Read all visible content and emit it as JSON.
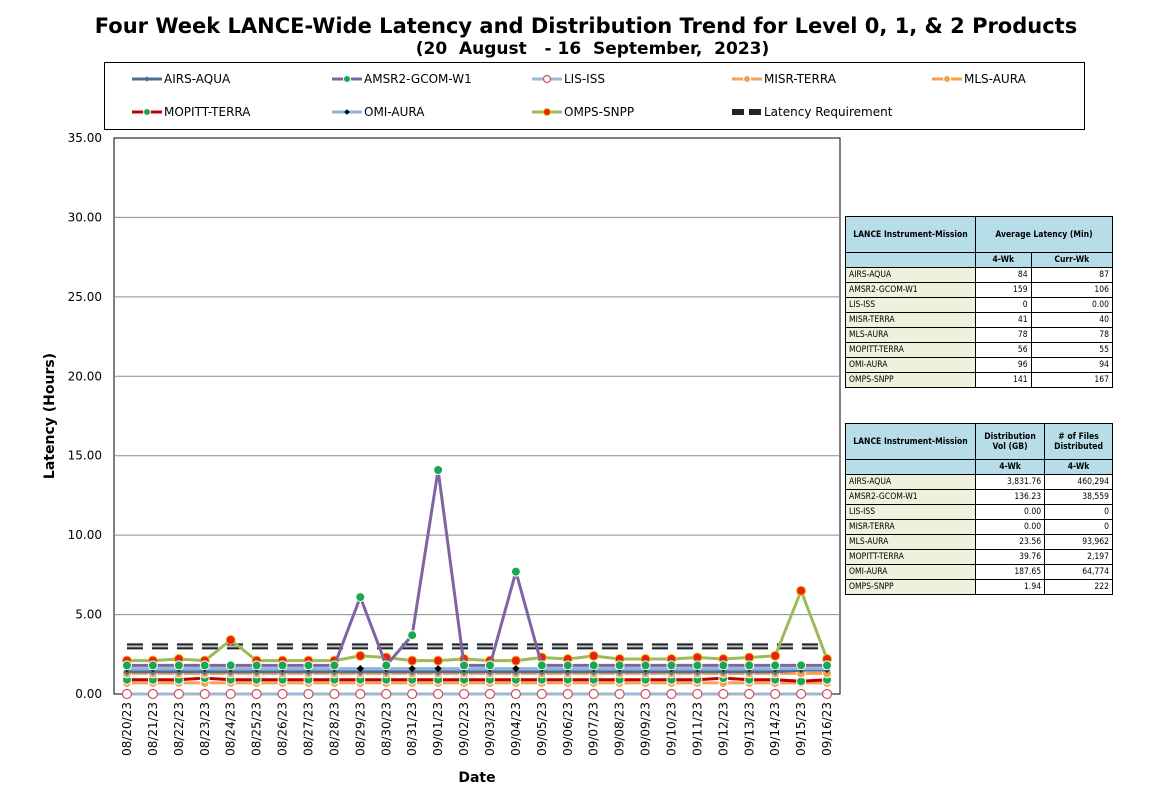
{
  "chart_data": {
    "type": "line",
    "title": "Four Week LANCE-Wide Latency and Distribution Trend for Level 0, 1, & 2 Products",
    "subtitle": "(20  August   - 16  September,  2023)",
    "xlabel": "Date",
    "ylabel": "Latency (Hours)",
    "ylim": [
      0,
      35
    ],
    "yticks": [
      "0.00",
      "5.00",
      "10.00",
      "15.00",
      "20.00",
      "25.00",
      "30.00",
      "35.00"
    ],
    "grid": true,
    "legend_position": "top",
    "x": [
      "08/20/23",
      "08/21/23",
      "08/22/23",
      "08/23/23",
      "08/24/23",
      "08/25/23",
      "08/26/23",
      "08/27/23",
      "08/28/23",
      "08/29/23",
      "08/30/23",
      "08/31/23",
      "09/01/23",
      "09/02/23",
      "09/03/23",
      "09/04/23",
      "09/05/23",
      "09/06/23",
      "09/07/23",
      "09/08/23",
      "09/09/23",
      "09/10/23",
      "09/11/23",
      "09/12/23",
      "09/13/23",
      "09/14/23",
      "09/15/23",
      "09/16/23"
    ],
    "series": [
      {
        "name": "AIRS-AQUA",
        "color": "#4a6f94",
        "marker": "diamond",
        "values": [
          1.4,
          1.4,
          1.4,
          1.4,
          1.4,
          1.4,
          1.4,
          1.4,
          1.4,
          1.4,
          1.4,
          1.4,
          1.4,
          1.4,
          1.4,
          1.4,
          1.4,
          1.4,
          1.4,
          1.4,
          1.4,
          1.4,
          1.4,
          1.4,
          1.4,
          1.4,
          1.5,
          1.5
        ]
      },
      {
        "name": "AMSR2-GCOM-W1",
        "color": "#8064a2",
        "marker": "circle",
        "values": [
          1.8,
          1.8,
          1.8,
          1.8,
          1.8,
          1.8,
          1.8,
          1.8,
          1.8,
          6.1,
          1.8,
          3.7,
          14.1,
          1.8,
          1.8,
          7.7,
          1.8,
          1.8,
          1.8,
          1.8,
          1.8,
          1.8,
          1.8,
          1.8,
          1.8,
          1.8,
          1.8,
          1.8
        ]
      },
      {
        "name": "LIS-ISS",
        "color": "#9ab9d6",
        "marker": "open-circle",
        "values": [
          0,
          0,
          0,
          0,
          0,
          0,
          0,
          0,
          0,
          0,
          0,
          0,
          0,
          0,
          0,
          0,
          0,
          0,
          0,
          0,
          0,
          0,
          0,
          0,
          0,
          0,
          0,
          0
        ]
      },
      {
        "name": "MISR-TERRA",
        "color": "#f0a35a",
        "marker": "circle",
        "values": [
          0.7,
          0.7,
          0.7,
          0.7,
          0.7,
          0.7,
          0.7,
          0.7,
          0.7,
          0.7,
          0.7,
          0.7,
          0.7,
          0.7,
          0.7,
          0.7,
          0.7,
          0.7,
          0.7,
          0.7,
          0.7,
          0.7,
          0.7,
          0.7,
          0.7,
          0.7,
          0.7,
          0.7
        ]
      },
      {
        "name": "MLS-AURA",
        "color": "#f5a04a",
        "marker": "circle",
        "values": [
          1.3,
          1.3,
          1.3,
          1.3,
          1.3,
          1.3,
          1.3,
          1.3,
          1.3,
          1.3,
          1.3,
          1.3,
          1.3,
          1.3,
          1.3,
          1.3,
          1.3,
          1.3,
          1.3,
          1.3,
          1.3,
          1.3,
          1.3,
          1.3,
          1.3,
          1.3,
          1.3,
          1.3
        ]
      },
      {
        "name": "MOPITT-TERRA",
        "color": "#c00000",
        "marker": "circle",
        "values": [
          0.9,
          0.9,
          0.9,
          1.0,
          0.9,
          0.9,
          0.9,
          0.9,
          0.9,
          0.9,
          0.9,
          0.9,
          0.9,
          0.9,
          0.9,
          0.9,
          0.9,
          0.9,
          0.9,
          0.9,
          0.9,
          0.9,
          0.9,
          1.0,
          0.9,
          0.9,
          0.8,
          0.9
        ]
      },
      {
        "name": "OMI-AURA",
        "color": "#8fb4de",
        "marker": "diamond",
        "values": [
          1.6,
          1.6,
          1.6,
          1.6,
          1.6,
          1.6,
          1.6,
          1.6,
          1.6,
          1.6,
          1.6,
          1.6,
          1.6,
          1.6,
          1.6,
          1.6,
          1.6,
          1.6,
          1.6,
          1.6,
          1.6,
          1.6,
          1.6,
          1.6,
          1.6,
          1.6,
          1.6,
          1.6
        ]
      },
      {
        "name": "OMPS-SNPP",
        "color": "#9bbb59",
        "marker": "circle",
        "values": [
          2.1,
          2.1,
          2.2,
          2.1,
          3.4,
          2.1,
          2.1,
          2.1,
          2.1,
          2.4,
          2.3,
          2.1,
          2.1,
          2.2,
          2.1,
          2.1,
          2.3,
          2.2,
          2.4,
          2.2,
          2.2,
          2.2,
          2.3,
          2.2,
          2.3,
          2.4,
          6.5,
          2.2
        ]
      },
      {
        "name": "Latency Requirement",
        "color": "#222222",
        "marker": "none",
        "dashed": true,
        "values": [
          3,
          3,
          3,
          3,
          3,
          3,
          3,
          3,
          3,
          3,
          3,
          3,
          3,
          3,
          3,
          3,
          3,
          3,
          3,
          3,
          3,
          3,
          3,
          3,
          3,
          3,
          3,
          3
        ]
      }
    ],
    "tables": [
      {
        "headers": [
          [
            "LANCE Instrument-Mission",
            "Average Latency (Min)"
          ],
          [
            "",
            "4-Wk",
            "Curr-Wk"
          ]
        ],
        "rows": [
          [
            "AIRS-AQUA",
            "84",
            "87"
          ],
          [
            "AMSR2-GCOM-W1",
            "159",
            "106"
          ],
          [
            "LIS-ISS",
            "0",
            "0.00"
          ],
          [
            "MISR-TERRA",
            "41",
            "40"
          ],
          [
            "MLS-AURA",
            "78",
            "78"
          ],
          [
            "MOPITT-TERRA",
            "56",
            "55"
          ],
          [
            "OMI-AURA",
            "96",
            "94"
          ],
          [
            "OMPS-SNPP",
            "141",
            "167"
          ]
        ]
      },
      {
        "headers": [
          [
            "LANCE Instrument-Mission",
            "Distribution Vol (GB)",
            "# of Files Distributed"
          ],
          [
            "",
            "4-Wk",
            "4-Wk"
          ]
        ],
        "rows": [
          [
            "AIRS-AQUA",
            "3,831.76",
            "460,294"
          ],
          [
            "AMSR2-GCOM-W1",
            "136.23",
            "38,559"
          ],
          [
            "LIS-ISS",
            "0.00",
            "0"
          ],
          [
            "MISR-TERRA",
            "0.00",
            "0"
          ],
          [
            "MLS-AURA",
            "23.56",
            "93,962"
          ],
          [
            "MOPITT-TERRA",
            "39.76",
            "2,197"
          ],
          [
            "OMI-AURA",
            "187.65",
            "64,774"
          ],
          [
            "OMPS-SNPP",
            "1.94",
            "222"
          ]
        ]
      }
    ]
  }
}
